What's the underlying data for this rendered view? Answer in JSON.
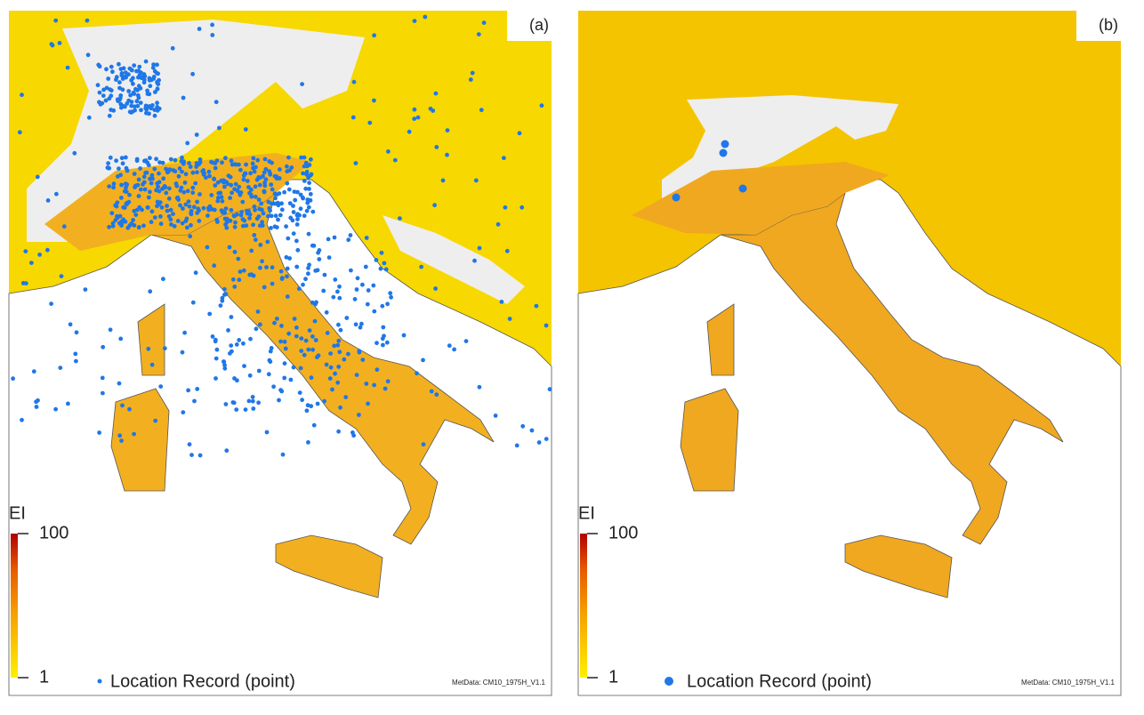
{
  "panels": [
    {
      "label": "(a)",
      "colorbar": {
        "title": "EI",
        "range": [
          1,
          100
        ],
        "ticks": [
          1,
          100
        ]
      },
      "legend": "Location Record (point)",
      "credit": "MetData: CM10_1975H_V1.1"
    },
    {
      "label": "(b)",
      "colorbar": {
        "title": "EI",
        "range": [
          1,
          100
        ],
        "ticks": [
          1,
          100
        ]
      },
      "legend": "Location Record (point)",
      "credit": "MetData: CM10_1975H_V1.1"
    }
  ]
}
